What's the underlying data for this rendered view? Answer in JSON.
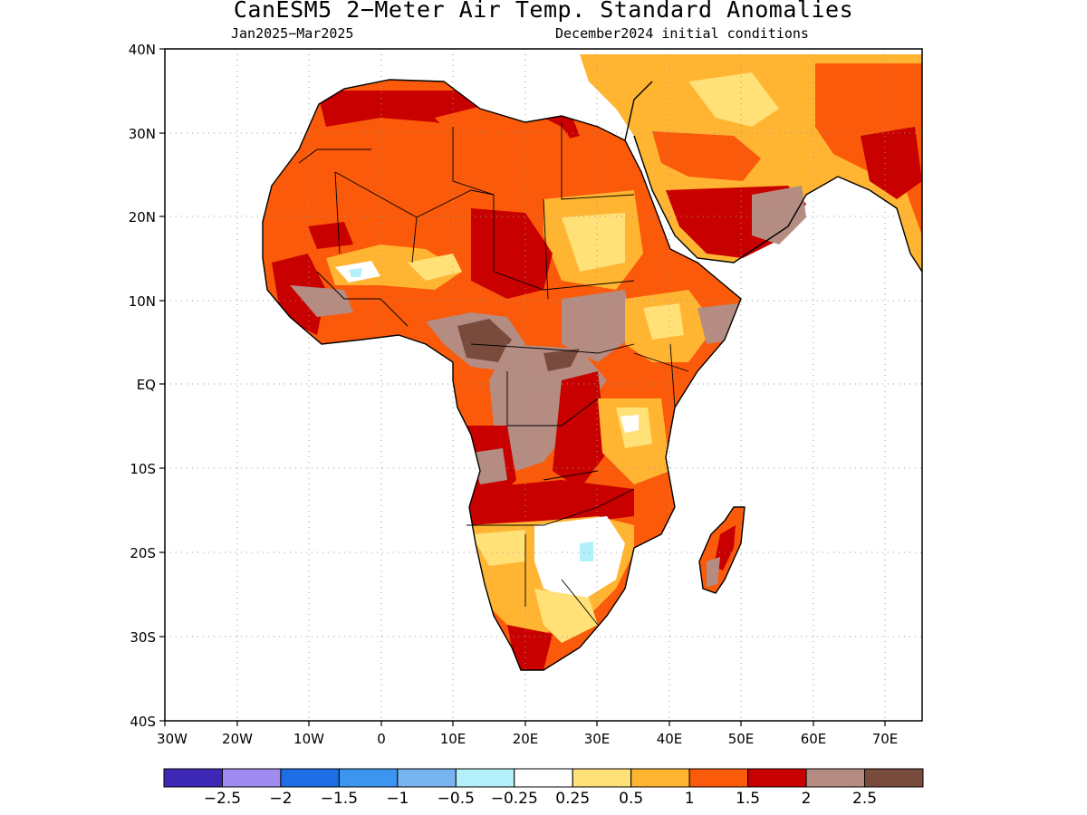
{
  "title": "CanESM5 2−Meter Air Temp. Standard Anomalies",
  "subtitle_left": "Jan2025−Mar2025",
  "subtitle_right": "December2024 initial conditions",
  "chart_data": {
    "type": "heatmap",
    "region": "Africa",
    "lon_range": [
      -30,
      75
    ],
    "lat_range": [
      -40,
      40
    ],
    "lat_ticks": [
      "40N",
      "30N",
      "20N",
      "10N",
      "EQ",
      "10S",
      "20S",
      "30S",
      "40S"
    ],
    "lon_ticks": [
      "30W",
      "20W",
      "10W",
      "0",
      "10E",
      "20E",
      "30E",
      "40E",
      "50E",
      "60E",
      "70E"
    ],
    "grid": "dotted",
    "colorbar": {
      "labels": [
        "−2.5",
        "−2",
        "−1.5",
        "−1",
        "−0.5",
        "−0.25",
        "0.25",
        "0.5",
        "1",
        "1.5",
        "2",
        "2.5"
      ],
      "colors": [
        "#3c28b4",
        "#a08cf0",
        "#1e6ee6",
        "#3c96f0",
        "#78b4f0",
        "#b4f0fa",
        "#ffffff",
        "#ffe178",
        "#ffb432",
        "#fa5a0a",
        "#c80000",
        "#b48c82",
        "#784b3c"
      ]
    }
  }
}
